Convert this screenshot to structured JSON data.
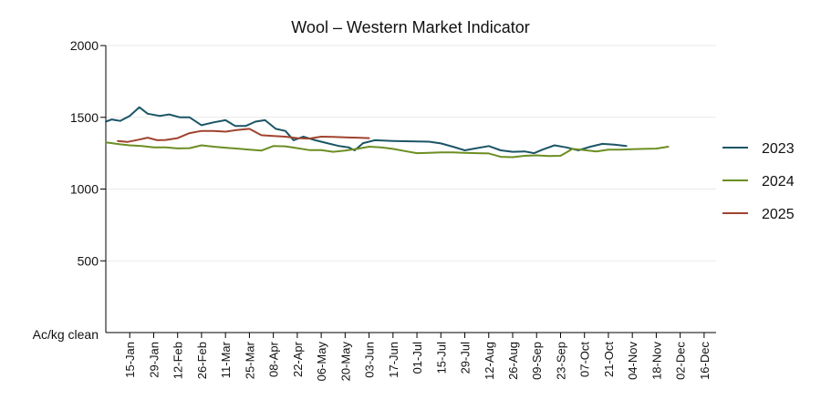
{
  "chart_data": {
    "type": "line",
    "title": "Wool – Western Market Indicator",
    "xlabel": "",
    "ylabel": "Ac/kg clean",
    "ylim": [
      0,
      2000
    ],
    "yticks": [
      500,
      1000,
      1500,
      2000
    ],
    "yticks_labeled": [
      "500",
      "1000",
      "1500",
      "2000"
    ],
    "grid": "horizontal",
    "legend_position": "right",
    "x_axis_unit": "week of year",
    "x_tick_labels": [
      "15-Jan",
      "29-Jan",
      "12-Feb",
      "26-Feb",
      "11-Mar",
      "25-Mar",
      "08-Apr",
      "22-Apr",
      "06-May",
      "20-May",
      "03-Jun",
      "17-Jun",
      "01-Jul",
      "15-Jul",
      "29-Jul",
      "12-Aug",
      "26-Aug",
      "09-Sep",
      "23-Sep",
      "07-Oct",
      "21-Oct",
      "04-Nov",
      "18-Nov",
      "02-Dec",
      "16-Dec"
    ],
    "x_tick_weeks": [
      3,
      5,
      7,
      9,
      11,
      13,
      15,
      17,
      19,
      21,
      23,
      25,
      27,
      29,
      31,
      33,
      35,
      37,
      39,
      41,
      43,
      45,
      47,
      49,
      51
    ],
    "series": [
      {
        "name": "2023",
        "color": "#1b5566",
        "points": [
          [
            1,
            1470
          ],
          [
            1.5,
            1485
          ],
          [
            2.2,
            1475
          ],
          [
            3,
            1510
          ],
          [
            3.8,
            1570
          ],
          [
            4.5,
            1525
          ],
          [
            5.5,
            1510
          ],
          [
            6.3,
            1520
          ],
          [
            7.2,
            1500
          ],
          [
            8,
            1500
          ],
          [
            9,
            1445
          ],
          [
            10,
            1465
          ],
          [
            11,
            1480
          ],
          [
            11.8,
            1440
          ],
          [
            12.7,
            1440
          ],
          [
            13.5,
            1470
          ],
          [
            14.3,
            1480
          ],
          [
            15.2,
            1420
          ],
          [
            16,
            1405
          ],
          [
            16.7,
            1340
          ],
          [
            17.5,
            1365
          ],
          [
            18.5,
            1340
          ],
          [
            19.5,
            1320
          ],
          [
            20.5,
            1300
          ],
          [
            21.3,
            1290
          ],
          [
            21.8,
            1270
          ],
          [
            22.5,
            1320
          ],
          [
            23.5,
            1340
          ],
          [
            25,
            1335
          ],
          [
            26.5,
            1333
          ],
          [
            28,
            1330
          ],
          [
            29,
            1318
          ],
          [
            30,
            1295
          ],
          [
            31,
            1270
          ],
          [
            32,
            1285
          ],
          [
            33,
            1300
          ],
          [
            34,
            1270
          ],
          [
            35,
            1260
          ],
          [
            36,
            1262
          ],
          [
            36.8,
            1250
          ],
          [
            37.5,
            1275
          ],
          [
            38.5,
            1305
          ],
          [
            39.5,
            1290
          ],
          [
            40.5,
            1270
          ],
          [
            41.5,
            1295
          ],
          [
            42.5,
            1315
          ],
          [
            43.5,
            1310
          ],
          [
            44.5,
            1300
          ]
        ]
      },
      {
        "name": "2024",
        "color": "#6b8e23",
        "points": [
          [
            1,
            1325
          ],
          [
            2.2,
            1312
          ],
          [
            3,
            1305
          ],
          [
            4,
            1300
          ],
          [
            5,
            1290
          ],
          [
            6,
            1290
          ],
          [
            7,
            1283
          ],
          [
            8,
            1285
          ],
          [
            9,
            1305
          ],
          [
            10,
            1295
          ],
          [
            11,
            1288
          ],
          [
            12,
            1282
          ],
          [
            13,
            1275
          ],
          [
            14,
            1268
          ],
          [
            15,
            1300
          ],
          [
            16,
            1298
          ],
          [
            17,
            1285
          ],
          [
            18,
            1272
          ],
          [
            19,
            1272
          ],
          [
            20,
            1260
          ],
          [
            21,
            1268
          ],
          [
            22,
            1280
          ],
          [
            23,
            1295
          ],
          [
            24,
            1290
          ],
          [
            25,
            1280
          ],
          [
            26,
            1265
          ],
          [
            27,
            1250
          ],
          [
            28,
            1252
          ],
          [
            29,
            1255
          ],
          [
            30,
            1255
          ],
          [
            31,
            1252
          ],
          [
            32,
            1250
          ],
          [
            33,
            1248
          ],
          [
            34,
            1225
          ],
          [
            35,
            1222
          ],
          [
            36,
            1232
          ],
          [
            37,
            1235
          ],
          [
            38,
            1230
          ],
          [
            39,
            1232
          ],
          [
            40,
            1280
          ],
          [
            41,
            1272
          ],
          [
            42,
            1262
          ],
          [
            43,
            1275
          ],
          [
            44,
            1275
          ],
          [
            45,
            1278
          ],
          [
            46,
            1280
          ],
          [
            47,
            1282
          ],
          [
            48,
            1295
          ]
        ]
      },
      {
        "name": "2025",
        "color": "#a0432e",
        "points": [
          [
            2,
            1335
          ],
          [
            2.8,
            1328
          ],
          [
            3.8,
            1345
          ],
          [
            4.5,
            1358
          ],
          [
            5.3,
            1340
          ],
          [
            6,
            1342
          ],
          [
            7,
            1355
          ],
          [
            8,
            1390
          ],
          [
            9,
            1405
          ],
          [
            10,
            1405
          ],
          [
            11,
            1400
          ],
          [
            12,
            1412
          ],
          [
            13,
            1420
          ],
          [
            14,
            1375
          ],
          [
            15,
            1370
          ],
          [
            16,
            1365
          ],
          [
            17,
            1355
          ],
          [
            18,
            1352
          ],
          [
            19,
            1365
          ],
          [
            20,
            1363
          ],
          [
            21,
            1360
          ],
          [
            22,
            1358
          ],
          [
            23,
            1355
          ]
        ]
      }
    ]
  }
}
